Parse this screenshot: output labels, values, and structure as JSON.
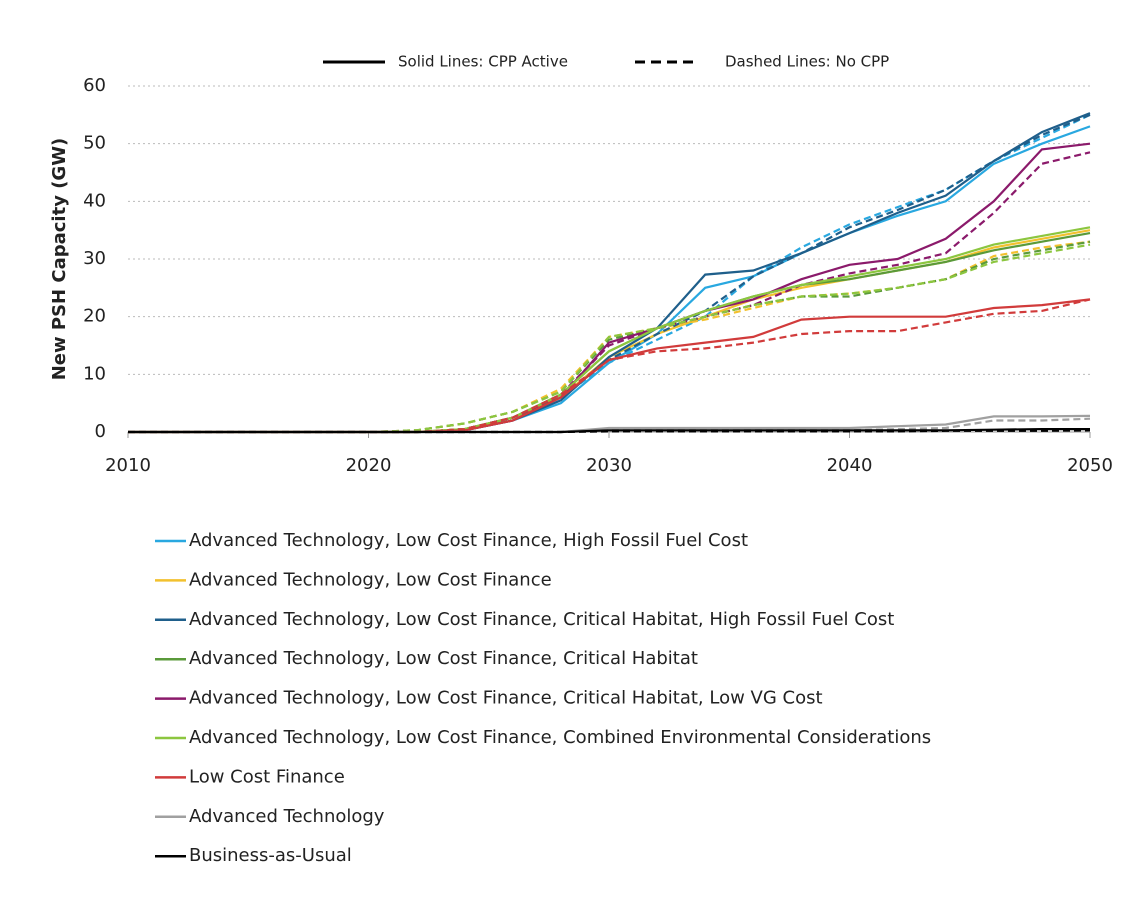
{
  "chart_data": {
    "type": "line",
    "y_label": "New PSH Capacity (GW)",
    "line_styles": [
      {
        "label": "Solid Lines: CPP Active",
        "dashed": false
      },
      {
        "label": "Dashed Lines: No CPP",
        "dashed": true
      }
    ],
    "x": [
      2010,
      2020,
      2022,
      2024,
      2026,
      2028,
      2030,
      2032,
      2034,
      2036,
      2038,
      2040,
      2042,
      2044,
      2046,
      2048,
      2050
    ],
    "xlim": [
      2010,
      2050
    ],
    "xticks": [
      2010,
      2020,
      2030,
      2040,
      2050
    ],
    "ylim": [
      0,
      60
    ],
    "yticks": [
      0,
      10,
      20,
      30,
      40,
      50,
      60
    ],
    "grid": true,
    "series": [
      {
        "name": "Advanced Technology, Low Cost Finance, High Fossil Fuel Cost",
        "color": "#29a8e0",
        "values": [
          0,
          0,
          0,
          0.3,
          2,
          5,
          12,
          17,
          25,
          27,
          31,
          34.5,
          37.5,
          40,
          46.5,
          50,
          53
        ],
        "values_no_cpp": [
          0,
          0,
          0,
          0.5,
          2.5,
          6,
          12,
          16,
          20,
          27,
          32,
          36,
          39,
          42,
          47,
          51,
          55
        ]
      },
      {
        "name": "Advanced Technology, Low Cost Finance",
        "color": "#f2c12e",
        "values": [
          0,
          0,
          0,
          0.5,
          2.5,
          6,
          13,
          17,
          20,
          23,
          25,
          26.5,
          28,
          29.5,
          32,
          33.5,
          35
        ],
        "values_no_cpp": [
          0,
          0,
          0.3,
          1.5,
          3.5,
          7.5,
          16.5,
          18,
          19.5,
          21.5,
          23.5,
          24,
          25,
          26.5,
          30.5,
          32,
          33
        ]
      },
      {
        "name": "Advanced Technology, Low Cost Finance, Critical Habitat, High Fossil Fuel Cost",
        "color": "#1f5f8b",
        "values": [
          0,
          0,
          0,
          0.3,
          2,
          5.5,
          13,
          18,
          27.3,
          28,
          31,
          34.5,
          38,
          41,
          47,
          52,
          55.3
        ],
        "values_no_cpp": [
          0,
          0,
          0,
          0.5,
          2.5,
          6,
          12.5,
          17,
          21,
          27,
          31,
          35.5,
          38.5,
          42,
          47,
          51.5,
          55
        ]
      },
      {
        "name": "Advanced Technology, Low Cost Finance, Critical Habitat",
        "color": "#5a9a3a",
        "values": [
          0,
          0,
          0,
          0.5,
          2.5,
          6.5,
          14,
          18,
          21,
          23.5,
          25.5,
          26.5,
          28,
          29.5,
          31.5,
          33,
          34.5
        ],
        "values_no_cpp": [
          0,
          0,
          0.3,
          1.5,
          3.5,
          7,
          16,
          18,
          20,
          22,
          23.5,
          23.5,
          25,
          26.5,
          30,
          31.5,
          33
        ]
      },
      {
        "name": "Advanced Technology, Low Cost Finance, Critical Habitat, Low VG Cost",
        "color": "#8b1a6b",
        "values": [
          0,
          0,
          0,
          0.3,
          2,
          6,
          15.5,
          18,
          21,
          23,
          26.5,
          29,
          30,
          33.5,
          40,
          49,
          50
        ],
        "values_no_cpp": [
          0,
          0,
          0,
          0.5,
          2.5,
          6.5,
          15,
          18,
          20,
          22,
          25.5,
          27.5,
          29,
          31,
          38,
          46.5,
          48.5
        ]
      },
      {
        "name": "Advanced Technology, Low Cost Finance, Combined Environmental Considerations",
        "color": "#8cc63f",
        "values": [
          0,
          0,
          0,
          0.5,
          2.5,
          6.5,
          14,
          18,
          21,
          23.5,
          25.5,
          27,
          28.5,
          30,
          32.5,
          34,
          35.5
        ],
        "values_no_cpp": [
          0,
          0,
          0.3,
          1.5,
          3.5,
          7,
          16.5,
          18,
          20,
          22,
          23.5,
          24,
          25,
          26.5,
          29.5,
          31,
          32.5
        ]
      },
      {
        "name": "Low Cost Finance",
        "color": "#d13b3b",
        "values": [
          0,
          0,
          0,
          0.3,
          2,
          6,
          12.5,
          14.5,
          15.5,
          16.5,
          19.5,
          20,
          20,
          20,
          21.5,
          22,
          23
        ],
        "values_no_cpp": [
          0,
          0,
          0,
          0.5,
          2.5,
          6.5,
          12.5,
          14,
          14.5,
          15.5,
          17,
          17.5,
          17.5,
          19,
          20.5,
          21,
          23
        ]
      },
      {
        "name": "Advanced Technology",
        "color": "#a0a0a0",
        "values": [
          0,
          0,
          0,
          0,
          0,
          0,
          0.7,
          0.7,
          0.7,
          0.7,
          0.7,
          0.7,
          1,
          1.3,
          2.7,
          2.7,
          2.8
        ],
        "values_no_cpp": [
          0,
          0,
          0,
          0,
          0,
          0,
          0.3,
          0.3,
          0.3,
          0.3,
          0.3,
          0.3,
          0.5,
          0.7,
          2,
          2,
          2.3
        ]
      },
      {
        "name": "Business-as-Usual",
        "color": "#000000",
        "values": [
          0,
          0,
          0,
          0,
          0,
          0,
          0.3,
          0.3,
          0.3,
          0.3,
          0.3,
          0.3,
          0.3,
          0.3,
          0.4,
          0.5,
          0.5
        ],
        "values_no_cpp": [
          0,
          0,
          0,
          0,
          0,
          0,
          0.1,
          0.1,
          0.1,
          0.1,
          0.1,
          0.1,
          0.1,
          0.2,
          0.2,
          0.2,
          0.3
        ]
      }
    ]
  }
}
